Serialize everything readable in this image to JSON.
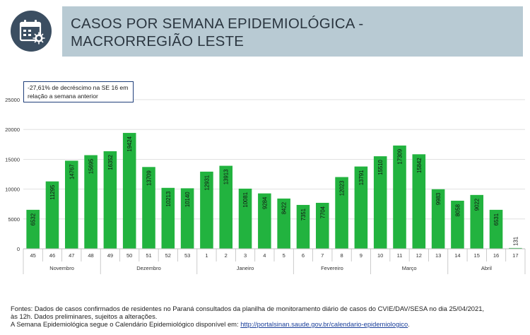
{
  "header": {
    "title_line1": "CASOS POR SEMANA EPIDEMIOLÓGICA -",
    "title_line2": "MACRORREGIÃO LESTE",
    "icon": "calendar-virus-icon"
  },
  "annotation": {
    "line1": "-27,61% de decréscimo na SE 16 em",
    "line2": "relação a semana anterior"
  },
  "chart_data": {
    "type": "bar",
    "categories": [
      "45",
      "46",
      "47",
      "48",
      "49",
      "50",
      "51",
      "52",
      "53",
      "1",
      "2",
      "3",
      "4",
      "5",
      "6",
      "7",
      "8",
      "9",
      "10",
      "11",
      "12",
      "13",
      "14",
      "15",
      "16",
      "17"
    ],
    "values": [
      6532,
      11295,
      14767,
      15695,
      16352,
      19424,
      13709,
      10213,
      10140,
      12931,
      13913,
      10081,
      9284,
      8422,
      7351,
      7704,
      12023,
      13791,
      15510,
      17309,
      15842,
      9983,
      8058,
      9022,
      6531,
      131
    ],
    "data_labels": [
      "6532",
      "11295",
      "14767",
      "15695",
      "16352",
      "19424",
      "13709",
      "10213",
      "10140",
      "12931",
      "13913",
      "10081",
      "9284",
      "8422",
      "7351",
      "7704",
      "12023",
      "13791",
      "15510",
      "17309",
      "15842",
      "9983",
      "8058",
      "9022",
      "6531",
      "131"
    ],
    "month_groups": [
      {
        "label": "Novembro",
        "start": 0,
        "end": 3
      },
      {
        "label": "Dezembro",
        "start": 4,
        "end": 8
      },
      {
        "label": "Janeiro",
        "start": 9,
        "end": 13
      },
      {
        "label": "Fevereiro",
        "start": 14,
        "end": 17
      },
      {
        "label": "Março",
        "start": 18,
        "end": 21
      },
      {
        "label": "Abril",
        "start": 22,
        "end": 25
      }
    ],
    "yticks": [
      "0",
      "5000",
      "10000",
      "15000",
      "20000",
      "25000"
    ],
    "ylim": [
      0,
      25000
    ],
    "grid": true,
    "colors": {
      "bar": "#22b33f",
      "grid": "#d9d9d9",
      "axis": "#bfbfbf",
      "header_box": "#b8cad3",
      "logo": "#3b4e61"
    }
  },
  "footer": {
    "line1": "Fontes: Dados de casos confirmados de residentes no Paraná consultados da planilha de monitoramento diário de casos do CVIE/DAV/SESA no dia 25/04/2021,",
    "line2": "às 12h. Dados preliminares, sujeitos a alterações.",
    "line3_prefix": "A Semana Epidemiológica segue o Calendário Epidemiológico disponível em: ",
    "line3_link": "http://portalsinan.saude.gov.br/calendario-epidemiologico",
    "line3_suffix": "."
  }
}
